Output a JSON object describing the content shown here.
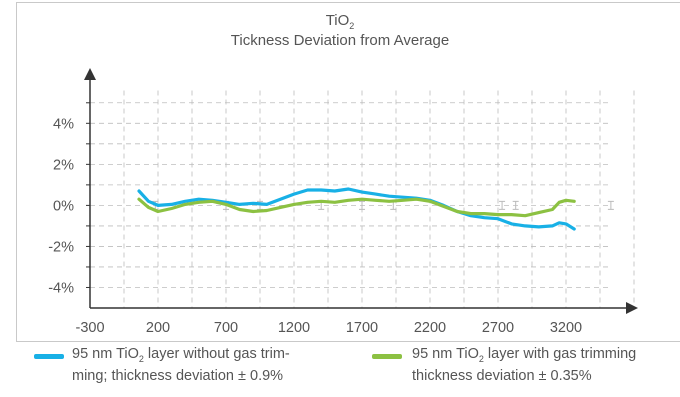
{
  "title": {
    "formula_base": "TiO",
    "formula_sub": "2",
    "subtitle": "Tickness Deviation from Average"
  },
  "colors": {
    "series_without_gas": "#18b0e6",
    "series_with_gas": "#8cc142",
    "axis": "#333333",
    "grid": "#bdbdbd",
    "error_bars": "#bbbbbb"
  },
  "legend": {
    "items": [
      {
        "line1_pre": "95 nm TiO",
        "line1_sub": "2",
        "line1_post": " layer without gas trim-",
        "line2": "ming; thickness deviation ± 0.9%"
      },
      {
        "line1_pre": "95 nm TiO",
        "line1_sub": "2",
        "line1_post": " layer with gas trimming",
        "line2": "thickness deviation ± 0.35%"
      }
    ]
  },
  "chart_data": {
    "type": "line",
    "xlim": [
      -300,
      3700
    ],
    "ylim": [
      -5,
      6.5
    ],
    "grid": true,
    "x_ticks": [
      -300,
      200,
      700,
      1200,
      1700,
      2200,
      2700,
      3200
    ],
    "x_tick_labels": [
      "-300",
      "200",
      "700",
      "1200",
      "1700",
      "2200",
      "2700",
      "3200"
    ],
    "y_ticks": [
      4,
      2,
      0,
      -2,
      -4
    ],
    "y_tick_labels": [
      "4%",
      "2%",
      "0%",
      "-2%",
      "-4%"
    ],
    "error_bar_x": [
      180,
      700,
      950,
      1400,
      1700,
      1930,
      2730,
      2830,
      3530
    ],
    "series": [
      {
        "name": "95 nm TiO2 layer without gas trimming; thickness deviation ± 0.9%",
        "x": [
          60,
          130,
          200,
          300,
          400,
          500,
          600,
          700,
          800,
          900,
          1000,
          1100,
          1200,
          1300,
          1400,
          1500,
          1600,
          1700,
          1800,
          1900,
          2000,
          2100,
          2200,
          2300,
          2400,
          2500,
          2600,
          2700,
          2800,
          2900,
          3000,
          3100,
          3150,
          3200,
          3260
        ],
        "y": [
          0.7,
          0.2,
          0.0,
          0.05,
          0.2,
          0.3,
          0.25,
          0.15,
          0.05,
          0.1,
          0.05,
          0.3,
          0.55,
          0.75,
          0.75,
          0.7,
          0.8,
          0.65,
          0.55,
          0.45,
          0.4,
          0.35,
          0.25,
          0.0,
          -0.3,
          -0.5,
          -0.6,
          -0.65,
          -0.9,
          -1.0,
          -1.05,
          -1.0,
          -0.85,
          -0.9,
          -1.15
        ]
      },
      {
        "name": "95 nm TiO2 layer with gas trimming thickness deviation ± 0.35%",
        "x": [
          60,
          130,
          200,
          300,
          400,
          500,
          600,
          700,
          800,
          900,
          1000,
          1100,
          1200,
          1300,
          1400,
          1500,
          1600,
          1700,
          1800,
          1900,
          2000,
          2100,
          2200,
          2300,
          2400,
          2500,
          2600,
          2700,
          2800,
          2900,
          3000,
          3100,
          3150,
          3200,
          3260
        ],
        "y": [
          0.3,
          -0.1,
          -0.3,
          -0.15,
          0.05,
          0.15,
          0.2,
          0.05,
          -0.2,
          -0.3,
          -0.25,
          -0.1,
          0.05,
          0.15,
          0.2,
          0.15,
          0.25,
          0.3,
          0.25,
          0.2,
          0.25,
          0.3,
          0.2,
          -0.05,
          -0.3,
          -0.4,
          -0.4,
          -0.45,
          -0.45,
          -0.5,
          -0.35,
          -0.2,
          0.15,
          0.25,
          0.2
        ]
      }
    ]
  }
}
